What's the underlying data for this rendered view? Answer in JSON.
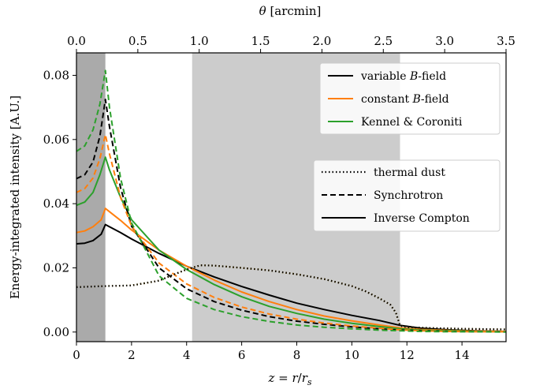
{
  "chart_data": {
    "type": "line",
    "xlabel": "z = r/r_s",
    "ylabel": "Energy-integrated intensity [A.U.]",
    "top_xlabel": "θ [arcmin]",
    "xlim": [
      0,
      15.6
    ],
    "ylim": [
      -0.003,
      0.087
    ],
    "top_xlim": [
      0,
      3.5
    ],
    "x_ticks": [
      "0",
      "2",
      "4",
      "6",
      "8",
      "10",
      "12",
      "14"
    ],
    "y_ticks": [
      "0.00",
      "0.02",
      "0.04",
      "0.06",
      "0.08"
    ],
    "top_ticks": [
      "0.0",
      "0.5",
      "1.0",
      "1.5",
      "2.0",
      "2.5",
      "3.0",
      "3.5"
    ],
    "shaded_regions": [
      {
        "x": [
          0,
          1.05
        ],
        "color": "#aaaaaa"
      },
      {
        "x": [
          4.2,
          11.75
        ],
        "color": "#cccccc"
      }
    ],
    "legend_models": [
      {
        "name": "variable B-field",
        "color": "#000000"
      },
      {
        "name": "constant B-field",
        "color": "#ff7f0e"
      },
      {
        "name": "Kennel & Coroniti",
        "color": "#2ca02c"
      }
    ],
    "legend_components": [
      {
        "name": "thermal dust",
        "style": "dotted"
      },
      {
        "name": "Synchrotron",
        "style": "dashed"
      },
      {
        "name": "Inverse Compton",
        "style": "solid"
      }
    ],
    "legend_placement": "top-right",
    "grid": false,
    "series": [
      {
        "color": "#000000",
        "style": "solid",
        "x": [
          0,
          0.3,
          0.6,
          0.9,
          1.05,
          1.2,
          1.6,
          2,
          3,
          4,
          5,
          6,
          7,
          8,
          9,
          10,
          11,
          11.75,
          12.5,
          13.5,
          14.5,
          15.6
        ],
        "y": [
          0.0275,
          0.0277,
          0.0285,
          0.0305,
          0.0335,
          0.0328,
          0.031,
          0.029,
          0.0245,
          0.0205,
          0.0172,
          0.0142,
          0.0115,
          0.009,
          0.007,
          0.0052,
          0.0036,
          0.0021,
          0.0012,
          0.0007,
          0.0004,
          0.0002
        ]
      },
      {
        "color": "#ff7f0e",
        "style": "solid",
        "x": [
          0,
          0.3,
          0.6,
          0.9,
          1.05,
          1.2,
          1.6,
          2,
          3,
          4,
          5,
          6,
          7,
          8,
          9,
          10,
          11,
          11.75,
          12.5,
          13.5,
          14.5,
          15.6
        ],
        "y": [
          0.031,
          0.0315,
          0.0328,
          0.035,
          0.0385,
          0.0375,
          0.0348,
          0.0318,
          0.0255,
          0.0205,
          0.0162,
          0.0125,
          0.0095,
          0.007,
          0.005,
          0.0035,
          0.0022,
          0.0013,
          0.0008,
          0.0005,
          0.0003,
          0.0002
        ]
      },
      {
        "color": "#2ca02c",
        "style": "solid",
        "x": [
          0,
          0.3,
          0.6,
          0.85,
          1.05,
          1.2,
          1.6,
          2,
          3,
          4,
          5,
          6,
          7,
          8,
          9,
          10,
          11,
          11.75,
          12.5,
          13.5,
          14.5,
          15.6
        ],
        "y": [
          0.0395,
          0.0405,
          0.0435,
          0.049,
          0.0545,
          0.0505,
          0.042,
          0.035,
          0.0255,
          0.0195,
          0.0148,
          0.011,
          0.008,
          0.0058,
          0.004,
          0.0027,
          0.0017,
          0.001,
          0.0006,
          0.0004,
          0.0002,
          0.0001
        ]
      },
      {
        "color": "#000000",
        "style": "dashed",
        "x": [
          0,
          0.3,
          0.6,
          0.85,
          1.05,
          1.2,
          1.6,
          2,
          3,
          4,
          5,
          6,
          7,
          8,
          9,
          10,
          11,
          11.75,
          12.5,
          13.5,
          14.5,
          15.6
        ],
        "y": [
          0.0478,
          0.049,
          0.053,
          0.061,
          0.0725,
          0.064,
          0.045,
          0.033,
          0.02,
          0.0135,
          0.0095,
          0.0068,
          0.0048,
          0.0034,
          0.0024,
          0.0016,
          0.001,
          0.0006,
          0.0004,
          0.0002,
          0.0001,
          0.0001
        ]
      },
      {
        "color": "#ff7f0e",
        "style": "dashed",
        "x": [
          0,
          0.3,
          0.6,
          0.85,
          1.05,
          1.2,
          1.6,
          2,
          3,
          4,
          5,
          6,
          7,
          8,
          9,
          10,
          11,
          11.75,
          12.5,
          13.5,
          14.5,
          15.6
        ],
        "y": [
          0.0435,
          0.0447,
          0.048,
          0.054,
          0.0615,
          0.0555,
          0.042,
          0.033,
          0.0215,
          0.015,
          0.0108,
          0.0078,
          0.0056,
          0.004,
          0.0028,
          0.0019,
          0.0012,
          0.0007,
          0.0004,
          0.0002,
          0.0001,
          0.0001
        ]
      },
      {
        "color": "#2ca02c",
        "style": "dashed",
        "x": [
          0,
          0.3,
          0.6,
          0.85,
          1.05,
          1.2,
          1.6,
          2,
          3,
          4,
          5,
          6,
          7,
          8,
          9,
          10,
          11,
          11.75,
          12.5,
          13.5,
          14.5,
          15.6
        ],
        "y": [
          0.0563,
          0.058,
          0.063,
          0.071,
          0.0815,
          0.07,
          0.048,
          0.034,
          0.0175,
          0.0105,
          0.007,
          0.0048,
          0.0033,
          0.0022,
          0.0015,
          0.001,
          0.0006,
          0.0004,
          0.0002,
          0.0001,
          0.0001,
          0
        ]
      },
      {
        "color": "#2ca02c",
        "style": "dotted",
        "x": [
          0,
          1,
          2,
          3,
          3.5,
          4,
          4.5,
          5,
          6,
          7,
          8,
          9,
          10,
          10.5,
          11,
          11.4,
          11.6,
          11.75,
          12,
          13,
          14,
          15.6
        ],
        "y": [
          0.014,
          0.0143,
          0.0145,
          0.016,
          0.0178,
          0.0195,
          0.0208,
          0.0207,
          0.02,
          0.0192,
          0.018,
          0.0165,
          0.0143,
          0.0127,
          0.0105,
          0.0085,
          0.006,
          0.002,
          0.0015,
          0.0012,
          0.001,
          0.0008
        ]
      },
      {
        "color": "#ff7f0e",
        "style": "dotted",
        "x": [
          0,
          1,
          2,
          3,
          3.5,
          4,
          4.5,
          5,
          6,
          7,
          8,
          9,
          10,
          10.5,
          11,
          11.4,
          11.6,
          11.75,
          12,
          13,
          14,
          15.6
        ],
        "y": [
          0.014,
          0.0143,
          0.0145,
          0.016,
          0.0178,
          0.0195,
          0.0208,
          0.0207,
          0.02,
          0.0192,
          0.018,
          0.0165,
          0.0143,
          0.0127,
          0.0105,
          0.0085,
          0.006,
          0.002,
          0.0015,
          0.0012,
          0.001,
          0.0008
        ]
      },
      {
        "color": "#000000",
        "style": "dotted",
        "x": [
          0,
          1,
          2,
          3,
          3.5,
          4,
          4.5,
          5,
          6,
          7,
          8,
          9,
          10,
          10.5,
          11,
          11.4,
          11.6,
          11.75,
          12,
          13,
          14,
          15.6
        ],
        "y": [
          0.014,
          0.0143,
          0.0145,
          0.016,
          0.0178,
          0.0195,
          0.0208,
          0.0207,
          0.02,
          0.0192,
          0.018,
          0.0165,
          0.0143,
          0.0127,
          0.0105,
          0.0085,
          0.006,
          0.002,
          0.0015,
          0.0012,
          0.001,
          0.0008
        ]
      }
    ]
  }
}
